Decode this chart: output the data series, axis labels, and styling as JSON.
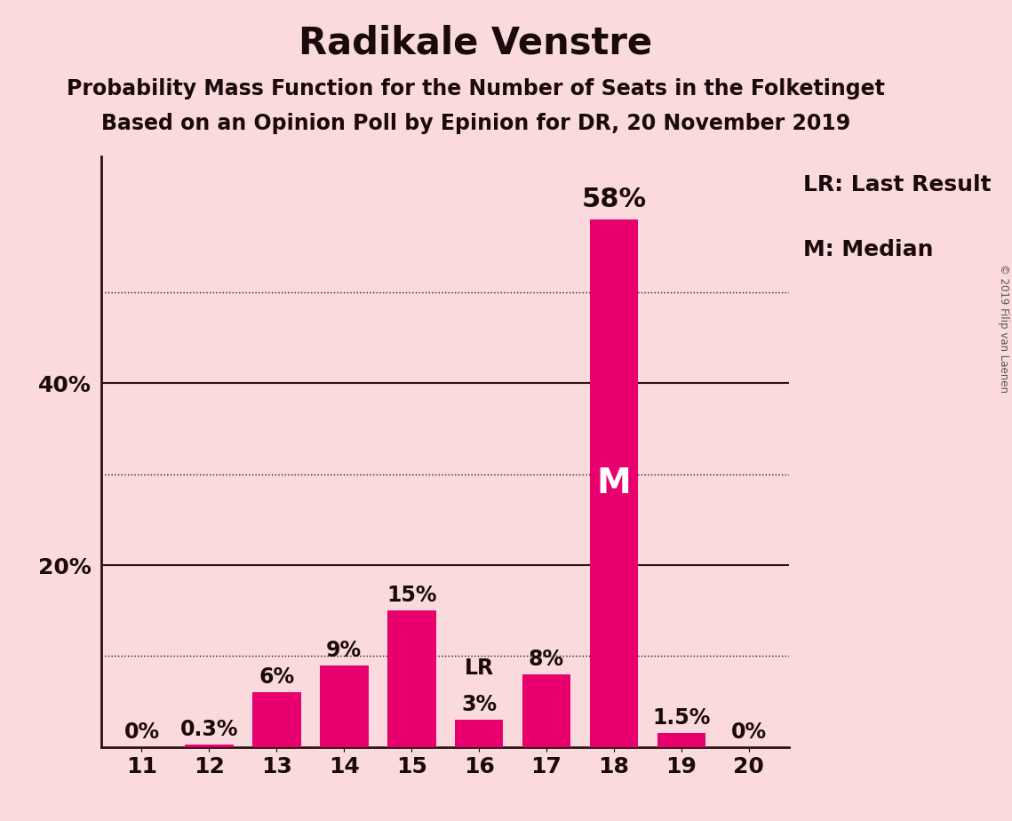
{
  "title": "Radikale Venstre",
  "subtitle1": "Probability Mass Function for the Number of Seats in the Folketinget",
  "subtitle2": "Based on an Opinion Poll by Epinion for DR, 20 November 2019",
  "categories": [
    11,
    12,
    13,
    14,
    15,
    16,
    17,
    18,
    19,
    20
  ],
  "values": [
    0.0,
    0.3,
    6.0,
    9.0,
    15.0,
    3.0,
    8.0,
    58.0,
    1.5,
    0.0
  ],
  "labels": [
    "0%",
    "0.3%",
    "6%",
    "9%",
    "15%",
    "3%",
    "8%",
    "58%",
    "1.5%",
    "0%"
  ],
  "bar_color": "#E8006F",
  "background_color": "#FADADD",
  "text_color": "#1a0a0a",
  "white_text_color": "#FFFFFF",
  "median_seat": 18,
  "last_result_seat": 16,
  "ylim": [
    0,
    65
  ],
  "grid_ticks": [
    10,
    30,
    50
  ],
  "solid_ticks": [
    20,
    40
  ],
  "legend_lr": "LR: Last Result",
  "legend_m": "M: Median",
  "copyright": "© 2019 Filip van Laenen",
  "title_fontsize": 30,
  "subtitle_fontsize": 17,
  "label_fontsize": 17,
  "tick_fontsize": 18,
  "legend_fontsize": 18,
  "median_label_fontsize": 28,
  "bar_label_fontsize_large": 22,
  "ytick_label_positions": [
    20,
    40
  ],
  "ytick_label_values": [
    "20%",
    "40%"
  ]
}
